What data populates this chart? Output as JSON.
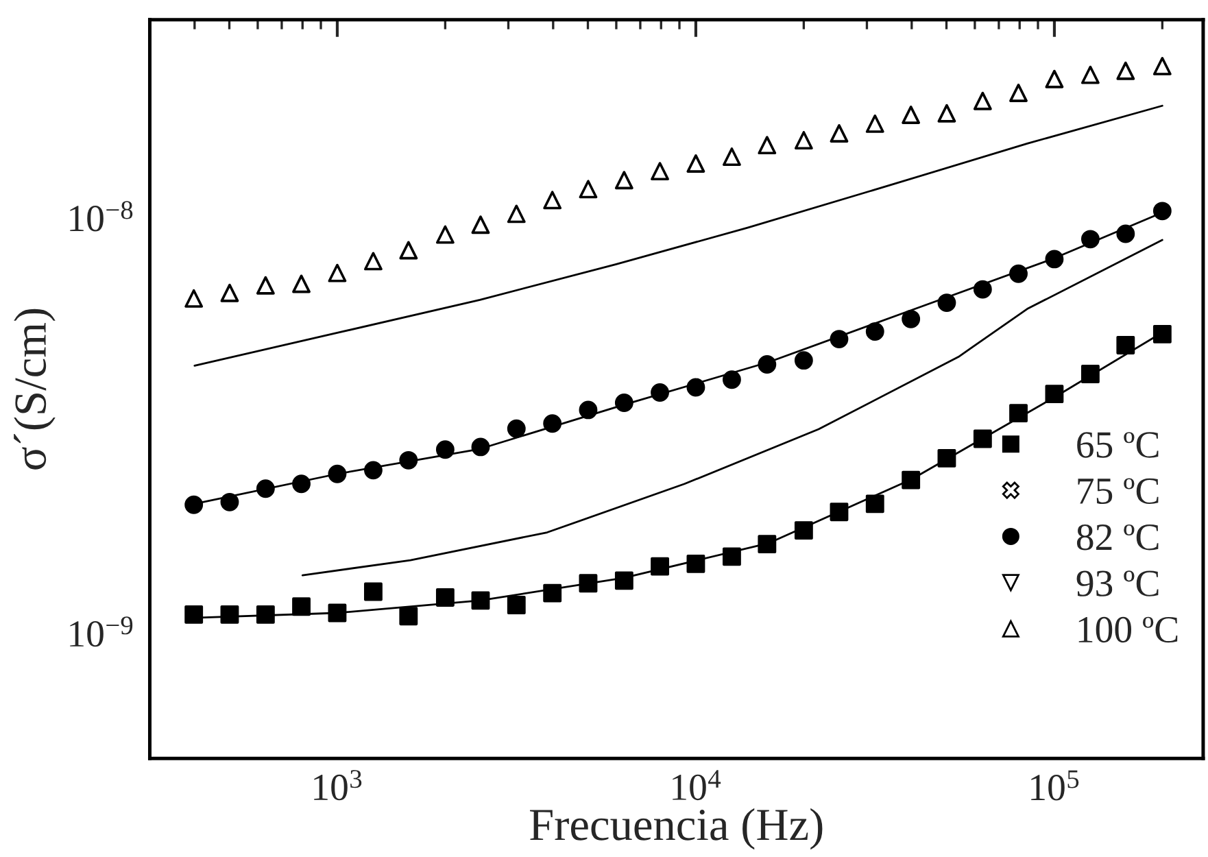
{
  "chart_data": {
    "type": "scatter",
    "xlabel": "Frecuencia (Hz)",
    "ylabel": "σ´(S/cm)",
    "log": "xy",
    "xlim": [
      300,
      260000
    ],
    "ylim": [
      5e-10,
      3e-08
    ],
    "xticks": [
      {
        "value": 1000,
        "label": "10$^{3}$"
      },
      {
        "value": 10000,
        "label": "10$^{4}$"
      },
      {
        "value": 100000,
        "label": "10$^{5}$"
      }
    ],
    "yticks": [
      {
        "value": 1e-09,
        "label": "10$^{−9}$"
      },
      {
        "value": 1e-08,
        "label": "10$^{−8}$"
      }
    ],
    "grid": false,
    "legend": "lower right",
    "series": [
      {
        "name": "65 ºC",
        "marker": "square",
        "color": "#000000",
        "x": [
          398,
          501,
          631,
          794,
          1000,
          1260,
          1580,
          2000,
          2510,
          3160,
          3980,
          5010,
          6310,
          7940,
          10000,
          12600,
          15800,
          20000,
          25100,
          31600,
          39800,
          50100,
          63100,
          79400,
          100000,
          126000,
          158000,
          200000
        ],
        "values": [
          1.11e-09,
          1.11e-09,
          1.11e-09,
          1.16e-09,
          1.12e-09,
          1.26e-09,
          1.1e-09,
          1.22e-09,
          1.2e-09,
          1.17e-09,
          1.25e-09,
          1.32e-09,
          1.34e-09,
          1.45e-09,
          1.47e-09,
          1.53e-09,
          1.64e-09,
          1.77e-09,
          1.96e-09,
          2.05e-09,
          2.34e-09,
          2.64e-09,
          2.94e-09,
          3.39e-09,
          3.77e-09,
          4.21e-09,
          4.94e-09,
          5.25e-09
        ]
      },
      {
        "type": "line",
        "color": "#000000",
        "x": [
          400,
          1000,
          2500,
          6300,
          16000,
          40000,
          100000,
          200000
        ],
        "values": [
          1.09e-09,
          1.12e-09,
          1.2e-09,
          1.36e-09,
          1.65e-09,
          2.35e-09,
          3.7e-09,
          5.3e-09
        ]
      },
      {
        "name": "75 ºC",
        "marker": "cross",
        "color": "#000000",
        "values": [
          null
        ]
      },
      {
        "type": "line",
        "color": "#000000",
        "x": [
          800,
          1600,
          3850,
          9300,
          22000,
          54000,
          84000,
          200000
        ],
        "values": [
          1.38e-09,
          1.5e-09,
          1.75e-09,
          2.29e-09,
          3.1e-09,
          4.63e-09,
          6.04e-09,
          8.85e-09
        ]
      },
      {
        "name": "82 ºC",
        "marker": "circle",
        "color": "#000000",
        "x": [
          398,
          501,
          631,
          794,
          1000,
          1260,
          1580,
          2000,
          2510,
          3160,
          3980,
          5010,
          6310,
          7940,
          10000,
          12600,
          15800,
          20000,
          25100,
          31600,
          39800,
          50100,
          63100,
          79400,
          100000,
          126000,
          158000,
          200000
        ],
        "values": [
          2.04e-09,
          2.07e-09,
          2.23e-09,
          2.29e-09,
          2.42e-09,
          2.47e-09,
          2.61e-09,
          2.77e-09,
          2.81e-09,
          3.11e-09,
          3.2e-09,
          3.45e-09,
          3.59e-09,
          3.8e-09,
          3.91e-09,
          4.08e-09,
          4.44e-09,
          4.54e-09,
          5.11e-09,
          5.33e-09,
          5.71e-09,
          6.25e-09,
          6.73e-09,
          7.34e-09,
          7.96e-09,
          8.89e-09,
          9.16e-09,
          1.039e-08
        ]
      },
      {
        "type": "line",
        "color": "#000000",
        "x": [
          400,
          1000,
          2500,
          6300,
          16000,
          40000,
          100000,
          200000
        ],
        "values": [
          2.05e-09,
          2.42e-09,
          2.78e-09,
          3.55e-09,
          4.5e-09,
          6e-09,
          8e-09,
          1.03e-08
        ]
      },
      {
        "name": "93 ºC",
        "marker": "triangle_down",
        "color": "#000000",
        "values": [
          null
        ]
      },
      {
        "type": "line",
        "color": "#000000",
        "x": [
          400,
          1000,
          2500,
          6000,
          14000,
          35000,
          84000,
          200000
        ],
        "values": [
          4.41e-09,
          5.29e-09,
          6.35e-09,
          7.74e-09,
          9.48e-09,
          1.201e-08,
          1.51e-08,
          1.862e-08
        ]
      },
      {
        "name": "100 ºC",
        "marker": "triangle",
        "color": "#000000",
        "x": [
          398,
          501,
          631,
          794,
          1000,
          1260,
          1580,
          2000,
          2510,
          3160,
          3980,
          5010,
          6310,
          7940,
          10000,
          12600,
          15800,
          20000,
          25100,
          31600,
          39800,
          50100,
          63100,
          79400,
          100000,
          126000,
          158000,
          200000
        ],
        "values": [
          6.4e-09,
          6.6e-09,
          6.88e-09,
          6.94e-09,
          7.37e-09,
          7.87e-09,
          8.36e-09,
          9.12e-09,
          9.63e-09,
          1.023e-08,
          1.104e-08,
          1.173e-08,
          1.233e-08,
          1.296e-08,
          1.352e-08,
          1.404e-08,
          1.497e-08,
          1.538e-08,
          1.598e-08,
          1.686e-08,
          1.771e-08,
          1.786e-08,
          1.912e-08,
          2e-08,
          2.16e-08,
          2.21e-08,
          2.26e-08,
          2.32e-08
        ]
      }
    ]
  }
}
